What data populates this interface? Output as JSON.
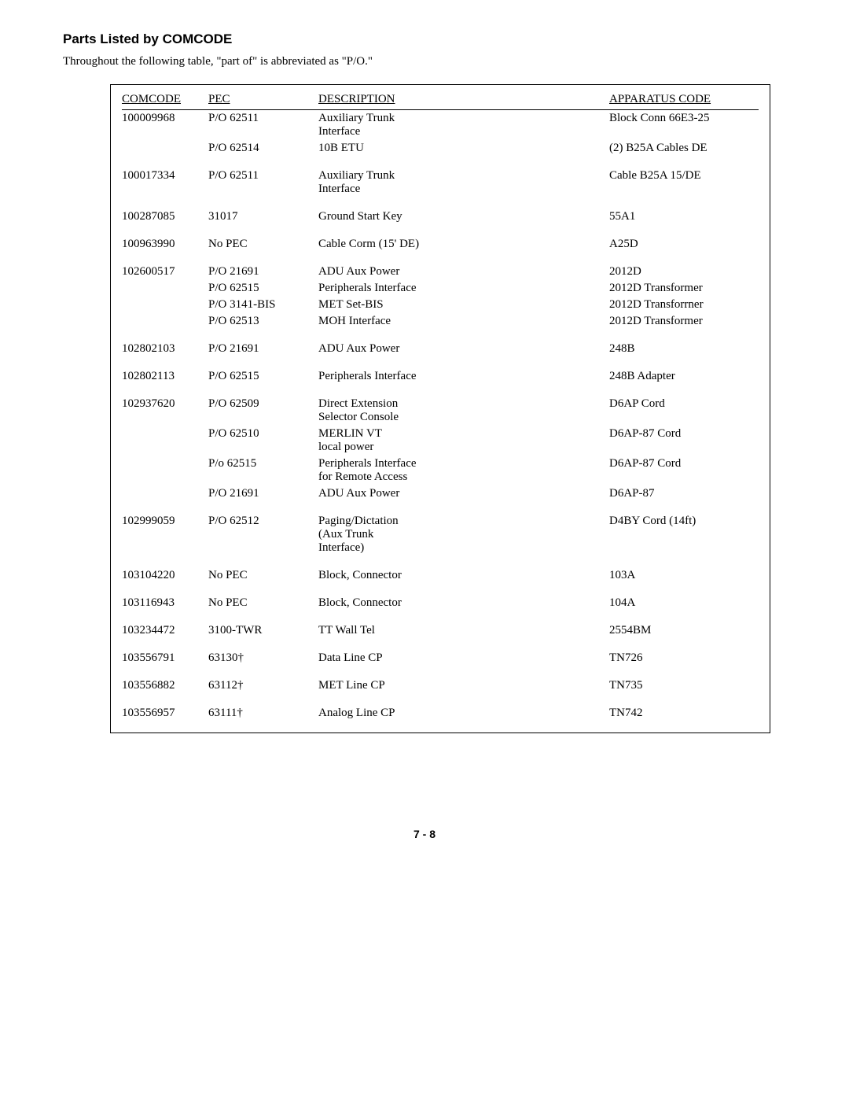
{
  "heading": "Parts Listed by COMCODE",
  "intro": "Throughout the following table, \"part of\" is abbreviated as \"P/O.\"",
  "columns": {
    "comcode": "COMCODE",
    "pec": "PEC",
    "description": "DESCRIPTION",
    "apparatus": "APPARATUS  CODE"
  },
  "rows": [
    {
      "comcode": "100009968",
      "pec": "P/O  62511",
      "desc": "Auxiliary  Trunk\nInterface",
      "app": "Block Conn 66E3-25"
    },
    {
      "comcode": "",
      "pec": "P/O  62514",
      "desc": "10B  ETU",
      "app": "(2)  B25A  Cables  DE"
    },
    {
      "spacer": true
    },
    {
      "comcode": "100017334",
      "pec": "P/O  62511",
      "desc": "Auxiliary  Trunk\nInterface",
      "app": "Cable  B25A  15/DE"
    },
    {
      "spacer": true
    },
    {
      "comcode": "100287085",
      "pec": "31017",
      "desc": "Ground  Start  Key",
      "app": "55A1"
    },
    {
      "spacer": true
    },
    {
      "comcode": "100963990",
      "pec": "No  PEC",
      "desc": "Cable  Corm  (15'  DE)",
      "app": "A25D"
    },
    {
      "spacer": true
    },
    {
      "comcode": "102600517",
      "pec": "P/O  21691",
      "desc": "ADU  Aux  Power",
      "app": "2012D"
    },
    {
      "comcode": "",
      "pec": "P/O  62515",
      "desc": "Peripherals  Interface",
      "app": "2012D   Transformer"
    },
    {
      "comcode": "",
      "pec": "P/O  3141-BIS",
      "desc": "MET  Set-BIS",
      "app": "2012D  Transforrner"
    },
    {
      "comcode": "",
      "pec": "P/O  62513",
      "desc": "MOH  Interface",
      "app": "2012D   Transformer"
    },
    {
      "spacer": true
    },
    {
      "comcode": "102802103",
      "pec": "P/O  21691",
      "desc": "ADU  Aux  Power",
      "app": "248B"
    },
    {
      "spacer": true
    },
    {
      "comcode": "102802113",
      "pec": "P/O  62515",
      "desc": "Peripherals  Interface",
      "app": "248B  Adapter"
    },
    {
      "spacer": true
    },
    {
      "comcode": "102937620",
      "pec": "P/O  62509",
      "desc": "Direct  Extension\nSelector  Console",
      "app": "D6AP  Cord"
    },
    {
      "comcode": "",
      "pec": "P/O  62510",
      "desc": "MERLIN  VT\nlocal  power",
      "app": "D6AP-87  Cord"
    },
    {
      "comcode": "",
      "pec": "P/o  62515",
      "desc": "Peripherals  Interface\nfor  Remote  Access",
      "app": "D6AP-87  Cord"
    },
    {
      "comcode": "",
      "pec": "P/O  21691",
      "desc": "ADU  Aux  Power",
      "app": "D6AP-87"
    },
    {
      "spacer": true
    },
    {
      "comcode": "102999059",
      "pec": "P/O  62512",
      "desc": "Paging/Dictation\n(Aux  Trunk\nInterface)",
      "app": "D4BY  Cord  (14ft)"
    },
    {
      "spacer": true
    },
    {
      "comcode": "103104220",
      "pec": "No  PEC",
      "desc": "Block,  Connector",
      "app": "103A"
    },
    {
      "spacer": true
    },
    {
      "comcode": "103116943",
      "pec": "No  PEC",
      "desc": "Block,  Connector",
      "app": "104A"
    },
    {
      "spacer": true
    },
    {
      "comcode": "103234472",
      "pec": "3100-TWR",
      "desc": "TT  Wall  Tel",
      "app": "2554BM"
    },
    {
      "spacer": true
    },
    {
      "comcode": "103556791",
      "pec": "63130†",
      "desc": "Data  Line  CP",
      "app": "TN726"
    },
    {
      "spacer": true
    },
    {
      "comcode": "103556882",
      "pec": "63112†",
      "desc": "MET  Line  CP",
      "app": "TN735"
    },
    {
      "spacer": true
    },
    {
      "comcode": "103556957",
      "pec": "63111†",
      "desc": "Analog  Line  CP",
      "app": "TN742"
    }
  ],
  "footer": "7 - 8"
}
